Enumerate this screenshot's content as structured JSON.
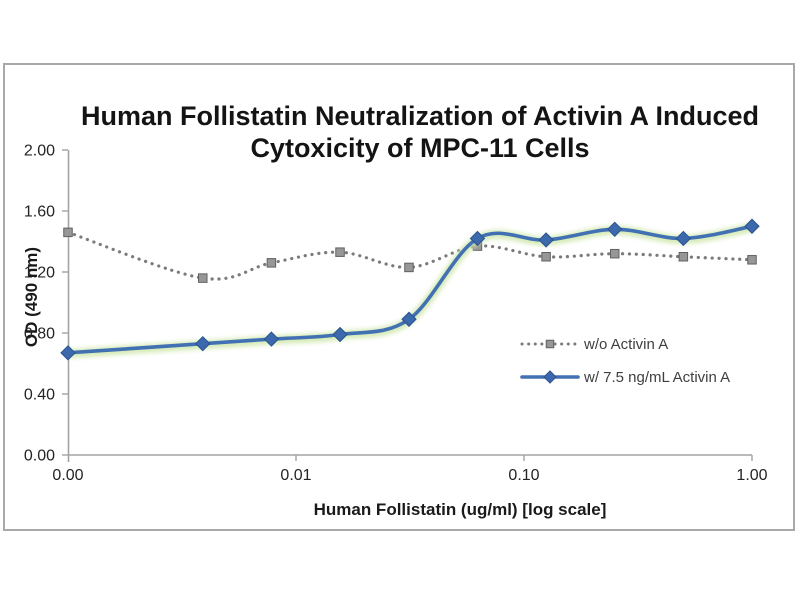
{
  "figure": {
    "background": "#ffffff",
    "frame_border_color": "#a9a9a9",
    "axis_color": "#a3a3a3"
  },
  "chart_data": {
    "type": "line",
    "title": "Human Follistatin Neutralization of Activin A Induced Cytoxicity of MPC-11 Cells",
    "title_lines": [
      "Human Follistatin Neutralization of Activin A Induced",
      "Cytoxicity of MPC-11 Cells"
    ],
    "xlabel": "Human Follistatin (ug/ml) [log scale]",
    "ylabel": "OD (490 nm)",
    "x_axis": {
      "scale": "log",
      "tick_values": [
        0,
        0.01,
        0.1,
        1
      ],
      "tick_labels": [
        "0.00",
        "0.01",
        "0.10",
        "1.00"
      ],
      "note": "zero plotted at axis origin"
    },
    "y_axis": {
      "range": [
        0,
        2
      ],
      "ticks": [
        0,
        0.4,
        0.8,
        1.2,
        1.6,
        2
      ],
      "tick_labels": [
        "0.00",
        "0.40",
        "0.80",
        "1.20",
        "1.60",
        "2.00"
      ]
    },
    "grid": "off",
    "x": [
      0,
      0.0039,
      0.0078,
      0.0156,
      0.0313,
      0.0625,
      0.125,
      0.25,
      0.5,
      1.0
    ],
    "series": [
      {
        "name": "w/o Activin A",
        "line_style": "dotted",
        "marker": "square",
        "color": "#7b7b7b",
        "marker_fill": "#979797",
        "marker_edge": "#616161",
        "values": [
          1.46,
          1.16,
          1.26,
          1.33,
          1.23,
          1.37,
          1.3,
          1.32,
          1.3,
          1.28
        ]
      },
      {
        "name": "w/ 7.5 ng/mL Activin A",
        "line_style": "solid",
        "marker": "diamond",
        "color": "#4271b3",
        "marker_fill": "#3c68ac",
        "marker_edge": "#2c5190",
        "glow_color": "#cfe7ab",
        "values": [
          0.67,
          0.73,
          0.76,
          0.79,
          0.89,
          1.42,
          1.41,
          1.48,
          1.42,
          1.5
        ]
      }
    ],
    "legend": {
      "position": "inside right",
      "entries": [
        "w/o Activin A",
        "w/ 7.5 ng/mL Activin A"
      ]
    }
  }
}
